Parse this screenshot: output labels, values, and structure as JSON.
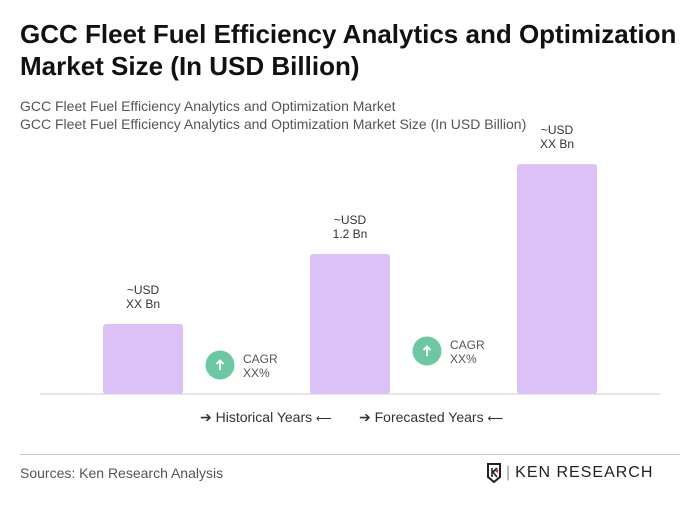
{
  "title": "GCC Fleet Fuel Efficiency Analytics and Optimization Market Size (In USD Billion)",
  "subtitle1": "GCC Fleet Fuel Efficiency Analytics and Optimization Market",
  "subtitle2": "GCC Fleet Fuel Efficiency Analytics and Optimization Market Size (In USD Billion)",
  "chart_data": {
    "type": "bar",
    "categories": [
      "",
      "",
      ""
    ],
    "values": [
      0.6,
      1.2,
      1.97
    ],
    "data_labels": [
      [
        "~USD",
        "XX Bn"
      ],
      [
        "~USD",
        "1.2 Bn"
      ],
      [
        "~USD",
        "XX Bn"
      ]
    ],
    "bar_color": "#dcc1f7",
    "cagr": [
      {
        "label": "CAGR",
        "value": "XX%"
      },
      {
        "label": "CAGR",
        "value": "XX%"
      }
    ],
    "cagr_color": "#6cc7a3",
    "ylim": [
      0,
      2.0
    ],
    "grid": false
  },
  "legend": {
    "historical": "Historical Years",
    "forecasted": "Forecasted Years"
  },
  "sources": "Sources: Ken Research Analysis",
  "logo_text": "KEN RESEARCH"
}
